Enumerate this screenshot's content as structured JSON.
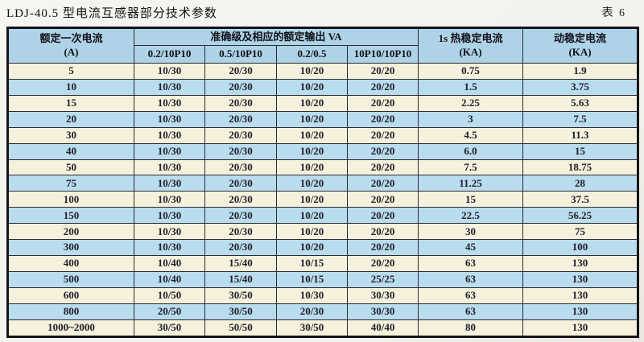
{
  "page": {
    "title": "LDJ-40.5 型电流互感器部分技术参数",
    "table_number": "表 6"
  },
  "table": {
    "header": {
      "col_primary_line1": "额定一次电流",
      "col_primary_line2": "(A)",
      "group_label": "准确级及相应的额定输出 VA",
      "subcols": [
        "0.2/10P10",
        "0.5/10P10",
        "0.2/0.5",
        "10P10/10P10"
      ],
      "col_thermal_line1": "1s 热稳定电流",
      "col_thermal_line2": "(KA)",
      "col_dynamic_line1": "动稳定电流",
      "col_dynamic_line2": "(KA)"
    },
    "rows": [
      [
        "5",
        "10/30",
        "20/30",
        "10/20",
        "20/20",
        "0.75",
        "1.9"
      ],
      [
        "10",
        "10/30",
        "20/30",
        "10/20",
        "20/20",
        "1.5",
        "3.75"
      ],
      [
        "15",
        "10/30",
        "20/30",
        "10/20",
        "20/20",
        "2.25",
        "5.63"
      ],
      [
        "20",
        "10/30",
        "20/30",
        "10/20",
        "20/20",
        "3",
        "7.5"
      ],
      [
        "30",
        "10/30",
        "20/30",
        "10/20",
        "20/20",
        "4.5",
        "11.3"
      ],
      [
        "40",
        "10/30",
        "20/30",
        "10/20",
        "20/20",
        "6.0",
        "15"
      ],
      [
        "50",
        "10/30",
        "20/30",
        "10/20",
        "20/20",
        "7.5",
        "18.75"
      ],
      [
        "75",
        "10/30",
        "20/30",
        "10/20",
        "20/20",
        "11.25",
        "28"
      ],
      [
        "100",
        "10/30",
        "20/30",
        "10/20",
        "20/20",
        "15",
        "37.5"
      ],
      [
        "150",
        "10/30",
        "20/30",
        "10/20",
        "20/20",
        "22.5",
        "56.25"
      ],
      [
        "200",
        "10/30",
        "20/30",
        "10/20",
        "20/20",
        "30",
        "75"
      ],
      [
        "300",
        "10/30",
        "20/30",
        "10/20",
        "20/20",
        "45",
        "100"
      ],
      [
        "400",
        "10/40",
        "15/40",
        "10/15",
        "20/20",
        "63",
        "130"
      ],
      [
        "500",
        "10/40",
        "15/40",
        "10/15",
        "25/25",
        "63",
        "130"
      ],
      [
        "600",
        "10/50",
        "30/50",
        "10/30",
        "30/30",
        "63",
        "130"
      ],
      [
        "800",
        "20/50",
        "30/50",
        "20/30",
        "30/30",
        "63",
        "130"
      ],
      [
        "1000~2000",
        "30/50",
        "50/50",
        "30/50",
        "40/40",
        "80",
        "130"
      ]
    ],
    "colors": {
      "header_bg": "#aed3e7",
      "row_cream": "#f6f1dc",
      "row_blue": "#b9dcee",
      "border": "#2b2b33"
    }
  }
}
